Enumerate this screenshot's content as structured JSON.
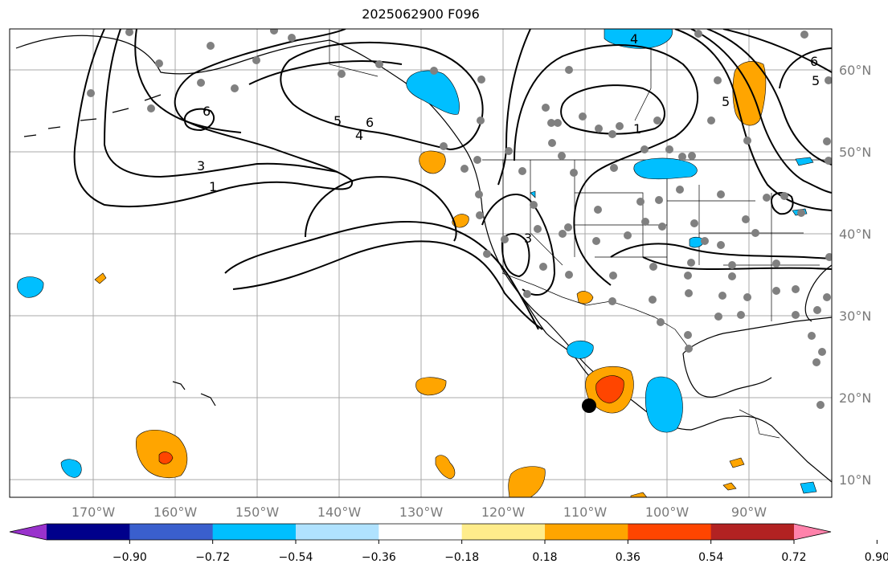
{
  "title": "2025062900 F096",
  "map": {
    "lon_labels": [
      "170°W",
      "160°W",
      "150°W",
      "140°W",
      "130°W",
      "120°W",
      "110°W",
      "100°W",
      "90°W"
    ],
    "lat_labels": [
      "60°N",
      "50°N",
      "40°N",
      "30°N",
      "20°N",
      "10°N"
    ],
    "contour_labels": [
      "6",
      "3",
      "1",
      "5",
      "6",
      "4",
      "4",
      "1",
      "3",
      "6",
      "5",
      "5"
    ],
    "station_color": "#808080",
    "marker_color": "#000000"
  },
  "colorbar": {
    "ticks": [
      "−0.90",
      "−0.72",
      "−0.54",
      "−0.36",
      "−0.18",
      "0.18",
      "0.36",
      "0.54",
      "0.72",
      "0.90"
    ],
    "colors": [
      "#9932cc",
      "#00008b",
      "#3a5fcd",
      "#00bfff",
      "#b0e2ff",
      "#ffffff",
      "#ffec8b",
      "#ffa500",
      "#ff4500",
      "#b22222",
      "#ff82ab"
    ]
  }
}
